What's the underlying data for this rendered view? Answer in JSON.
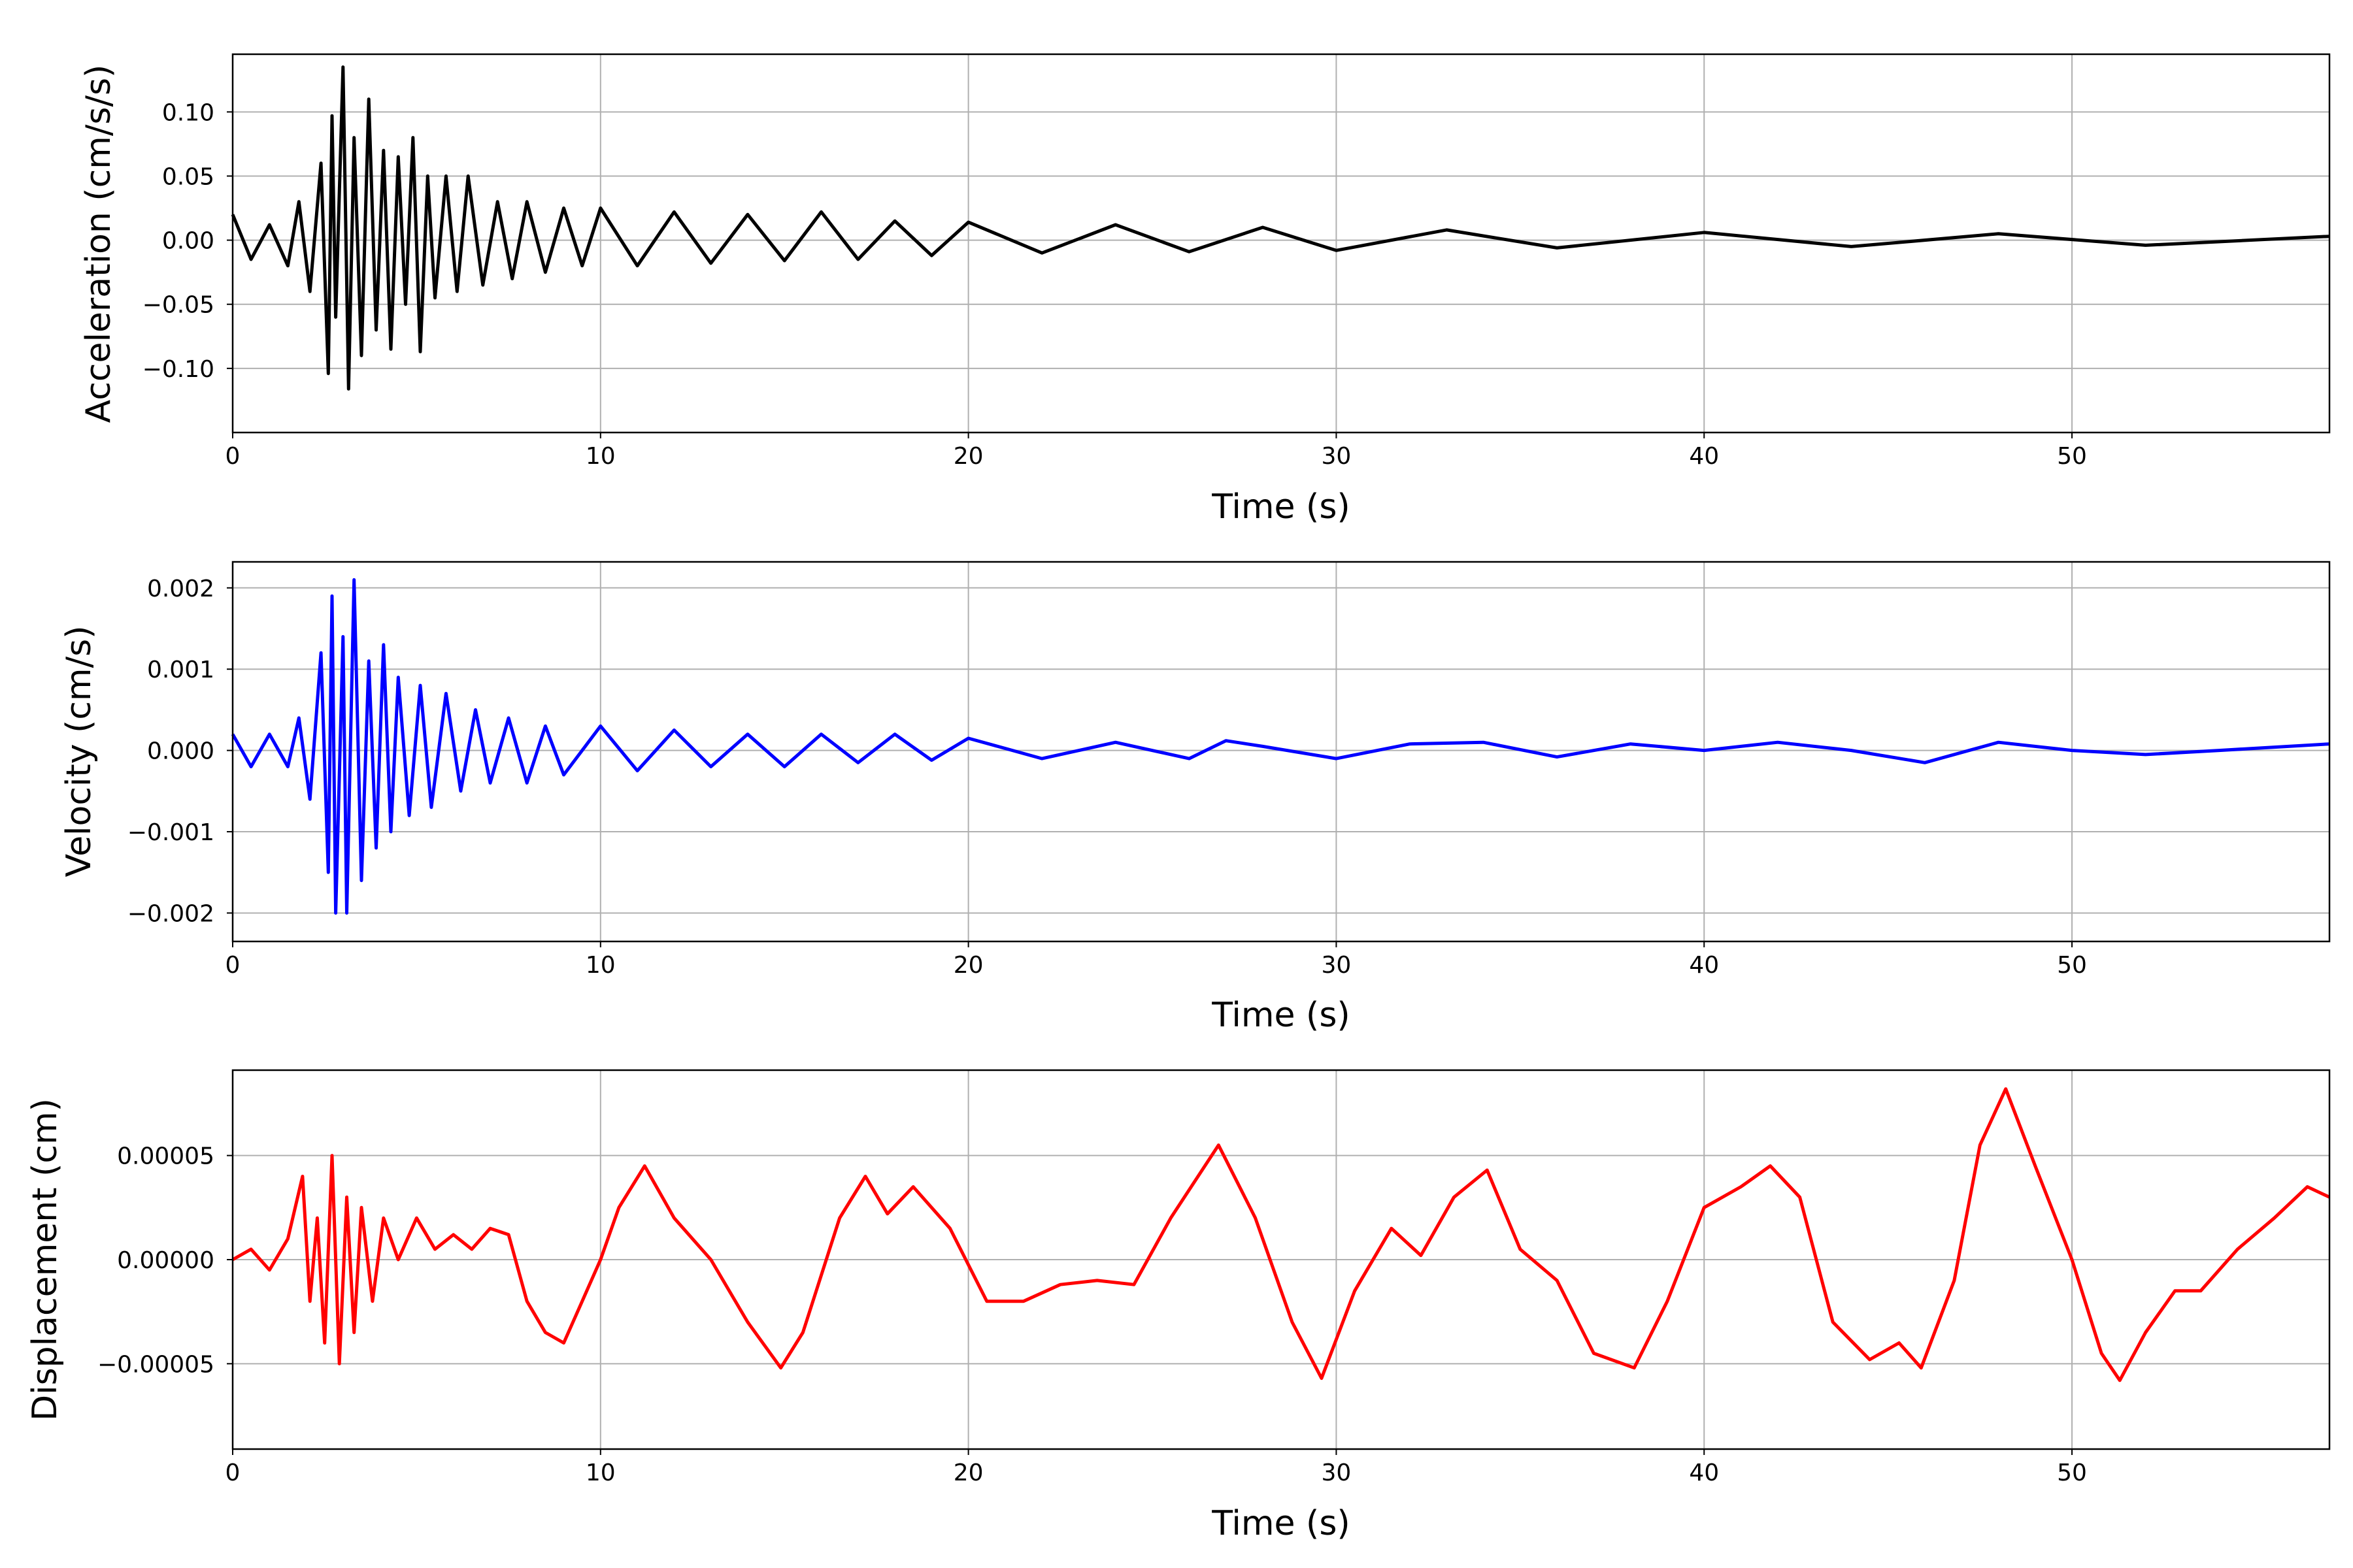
{
  "chart_data": [
    {
      "type": "line",
      "title": "",
      "xlabel": "Time (s)",
      "ylabel": "Acceleration (cm/s/s)",
      "xlim": [
        0,
        57
      ],
      "ylim": [
        -0.15,
        0.145
      ],
      "xticks": [
        0,
        10,
        20,
        30,
        40,
        50
      ],
      "xtick_labels": [
        "0",
        "10",
        "20",
        "30",
        "40",
        "50"
      ],
      "yticks": [
        -0.1,
        -0.05,
        0.0,
        0.05,
        0.1
      ],
      "ytick_labels": [
        "−0.10",
        "−0.05",
        "0.00",
        "0.05",
        "0.10"
      ],
      "grid": true,
      "series": [
        {
          "color": "#000000",
          "x": [
            0,
            0.5,
            1,
            1.5,
            1.8,
            2.1,
            2.4,
            2.6,
            2.7,
            2.8,
            3.0,
            3.15,
            3.3,
            3.5,
            3.7,
            3.9,
            4.1,
            4.3,
            4.5,
            4.7,
            4.9,
            5.1,
            5.3,
            5.5,
            5.8,
            6.1,
            6.4,
            6.8,
            7.2,
            7.6,
            8,
            8.5,
            9,
            9.5,
            10,
            11,
            12,
            13,
            14,
            15,
            16,
            17,
            18,
            19,
            20,
            22,
            24,
            26,
            28,
            30,
            33,
            36,
            40,
            44,
            48,
            52,
            57
          ],
          "y": [
            0.02,
            -0.015,
            0.012,
            -0.02,
            0.03,
            -0.04,
            0.06,
            -0.104,
            0.097,
            -0.06,
            0.135,
            -0.116,
            0.08,
            -0.09,
            0.11,
            -0.07,
            0.07,
            -0.085,
            0.065,
            -0.05,
            0.08,
            -0.087,
            0.05,
            -0.045,
            0.05,
            -0.04,
            0.05,
            -0.035,
            0.03,
            -0.03,
            0.03,
            -0.025,
            0.025,
            -0.02,
            0.025,
            -0.02,
            0.022,
            -0.018,
            0.02,
            -0.016,
            0.022,
            -0.015,
            0.015,
            -0.012,
            0.014,
            -0.01,
            0.012,
            -0.009,
            0.01,
            -0.008,
            0.008,
            -0.006,
            0.006,
            -0.005,
            0.005,
            -0.004,
            0.003
          ]
        }
      ]
    },
    {
      "type": "line",
      "title": "",
      "xlabel": "Time (s)",
      "ylabel": "Velocity (cm/s)",
      "xlim": [
        0,
        57
      ],
      "ylim": [
        -0.00235,
        0.00232
      ],
      "xticks": [
        0,
        10,
        20,
        30,
        40,
        50
      ],
      "xtick_labels": [
        "0",
        "10",
        "20",
        "30",
        "40",
        "50"
      ],
      "yticks": [
        -0.002,
        -0.001,
        0.0,
        0.001,
        0.002
      ],
      "ytick_labels": [
        "−0.002",
        "−0.001",
        "0.000",
        "0.001",
        "0.002"
      ],
      "grid": true,
      "series": [
        {
          "color": "#0000ff",
          "x": [
            0,
            0.5,
            1,
            1.5,
            1.8,
            2.1,
            2.4,
            2.6,
            2.7,
            2.8,
            3.0,
            3.1,
            3.3,
            3.5,
            3.7,
            3.9,
            4.1,
            4.3,
            4.5,
            4.8,
            5.1,
            5.4,
            5.8,
            6.2,
            6.6,
            7,
            7.5,
            8,
            8.5,
            9,
            10,
            11,
            12,
            13,
            14,
            15,
            16,
            17,
            18,
            19,
            20,
            22,
            24,
            26,
            27,
            28,
            30,
            32,
            34,
            36,
            38,
            40,
            42,
            44,
            46,
            48,
            50,
            52,
            54,
            57
          ],
          "y": [
            0.0002,
            -0.0002,
            0.0002,
            -0.0002,
            0.0004,
            -0.0006,
            0.0012,
            -0.0015,
            0.0019,
            -0.002,
            0.0014,
            -0.002,
            0.0021,
            -0.0016,
            0.0011,
            -0.0012,
            0.0013,
            -0.001,
            0.0009,
            -0.0008,
            0.0008,
            -0.0007,
            0.0007,
            -0.0005,
            0.0005,
            -0.0004,
            0.0004,
            -0.0004,
            0.0003,
            -0.0003,
            0.0003,
            -0.00025,
            0.00025,
            -0.0002,
            0.0002,
            -0.0002,
            0.0002,
            -0.00015,
            0.0002,
            -0.00012,
            0.00015,
            -0.0001,
            0.0001,
            -0.0001,
            0.00012,
            5e-05,
            -0.0001,
            8e-05,
            0.0001,
            -8e-05,
            8e-05,
            0.0,
            0.0001,
            0.0,
            -0.00015,
            0.0001,
            0.0,
            -5e-05,
            0.0,
            8e-05
          ]
        }
      ]
    },
    {
      "type": "line",
      "title": "",
      "xlabel": "Time (s)",
      "ylabel": "Displacement (cm)",
      "xlim": [
        0,
        57
      ],
      "ylim": [
        -9.1e-05,
        9.1e-05
      ],
      "xticks": [
        0,
        10,
        20,
        30,
        40,
        50
      ],
      "xtick_labels": [
        "0",
        "10",
        "20",
        "30",
        "40",
        "50"
      ],
      "yticks": [
        -5e-05,
        0.0,
        5e-05
      ],
      "ytick_labels": [
        "−0.00005",
        "0.00000",
        "0.00005"
      ],
      "grid": true,
      "series": [
        {
          "color": "#ff0000",
          "x": [
            0,
            0.5,
            1,
            1.5,
            1.9,
            2.1,
            2.3,
            2.5,
            2.7,
            2.9,
            3.1,
            3.3,
            3.5,
            3.8,
            4.1,
            4.5,
            5,
            5.5,
            6,
            6.5,
            7,
            7.5,
            8,
            8.5,
            9,
            9.5,
            10,
            10.5,
            11.2,
            12,
            13,
            14,
            14.9,
            15.5,
            16.5,
            17.2,
            17.8,
            18.5,
            19.5,
            20.5,
            21.5,
            22.5,
            23.5,
            24.5,
            25.5,
            26.8,
            27.8,
            28.8,
            29.6,
            30.5,
            31.5,
            32.3,
            33.2,
            34.1,
            35,
            36,
            37,
            38.1,
            39,
            40,
            41,
            41.8,
            42.6,
            43.5,
            44.5,
            45.3,
            45.9,
            46.8,
            47.5,
            48.2,
            49,
            50,
            50.8,
            51.3,
            52,
            52.8,
            53.5,
            54.5,
            55.5,
            56.4,
            57
          ],
          "y": [
            0.0,
            5e-06,
            -5e-06,
            1e-05,
            4e-05,
            -2e-05,
            2e-05,
            -4e-05,
            5e-05,
            -5e-05,
            3e-05,
            -3.5e-05,
            2.5e-05,
            -2e-05,
            2e-05,
            0.0,
            2e-05,
            5e-06,
            1.2e-05,
            5e-06,
            1.5e-05,
            1.2e-05,
            -2e-05,
            -3.5e-05,
            -4e-05,
            -2e-05,
            0.0,
            2.5e-05,
            4.5e-05,
            2e-05,
            0.0,
            -3e-05,
            -5.2e-05,
            -3.5e-05,
            2e-05,
            4e-05,
            2.2e-05,
            3.5e-05,
            1.5e-05,
            -2e-05,
            -2e-05,
            -1.2e-05,
            -1e-05,
            -1.2e-05,
            2e-05,
            5.5e-05,
            2e-05,
            -3e-05,
            -5.7e-05,
            -1.5e-05,
            1.5e-05,
            2e-06,
            3e-05,
            4.3e-05,
            5e-06,
            -1e-05,
            -4.5e-05,
            -5.2e-05,
            -2e-05,
            2.5e-05,
            3.5e-05,
            4.5e-05,
            3e-05,
            -3e-05,
            -4.8e-05,
            -4e-05,
            -5.2e-05,
            -1e-05,
            5.5e-05,
            8.2e-05,
            4.5e-05,
            0.0,
            -4.5e-05,
            -5.8e-05,
            -3.5e-05,
            -1.5e-05,
            -1.5e-05,
            5e-06,
            2e-05,
            3.5e-05,
            3e-05
          ]
        }
      ]
    }
  ]
}
